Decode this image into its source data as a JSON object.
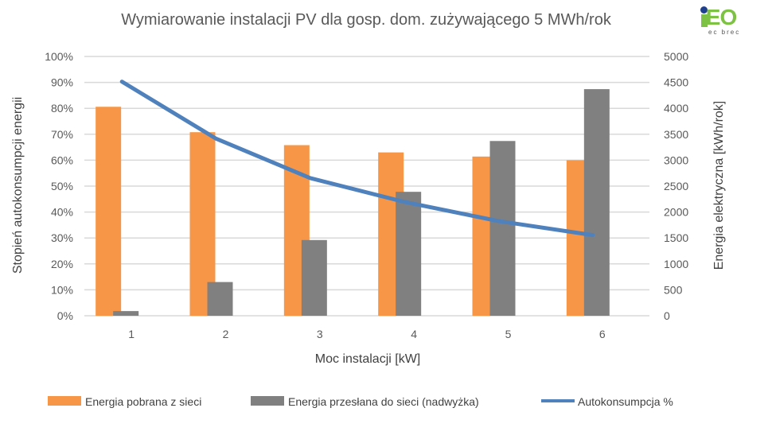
{
  "logo": {
    "text": "iEO",
    "subtext": "ec brec",
    "colors": {
      "green": "#7dc242",
      "blue": "#1f3f8f"
    }
  },
  "chart_data": {
    "type": "bar+line",
    "title": "Wymiarowanie instalacji PV dla gosp. dom. zużywającego 5 MWh/rok",
    "xlabel": "Moc instalacji [kW]",
    "ylabel_left": "Stopień autokonsumpcji energii",
    "ylabel_right": "Energia elektryczna [kWh/rok]",
    "categories": [
      "1",
      "2",
      "3",
      "4",
      "5",
      "6"
    ],
    "ylim_left": [
      0,
      100
    ],
    "yticks_left": [
      "0%",
      "10%",
      "20%",
      "30%",
      "40%",
      "50%",
      "60%",
      "70%",
      "80%",
      "90%",
      "100%"
    ],
    "ylim_right": [
      0,
      5000
    ],
    "yticks_right": [
      "0",
      "500",
      "1000",
      "1500",
      "2000",
      "2500",
      "3000",
      "3500",
      "4000",
      "4500",
      "5000"
    ],
    "grid": true,
    "legend_position": "bottom",
    "series": [
      {
        "name": "Energia pobrana z sieci",
        "type": "bar",
        "axis": "right",
        "color": "#f79646",
        "values": [
          4030,
          3540,
          3290,
          3150,
          3070,
          3000
        ]
      },
      {
        "name": "Energia przesłana do sieci (nadwyżka)",
        "type": "bar",
        "axis": "right",
        "color": "#808080",
        "values": [
          90,
          650,
          1460,
          2390,
          3370,
          4370
        ]
      },
      {
        "name": "Autokonsumpcja %",
        "type": "line",
        "axis": "left",
        "color": "#4f81bd",
        "values": [
          90.3,
          68.3,
          53.1,
          43.9,
          36.5,
          31.1
        ]
      }
    ]
  }
}
